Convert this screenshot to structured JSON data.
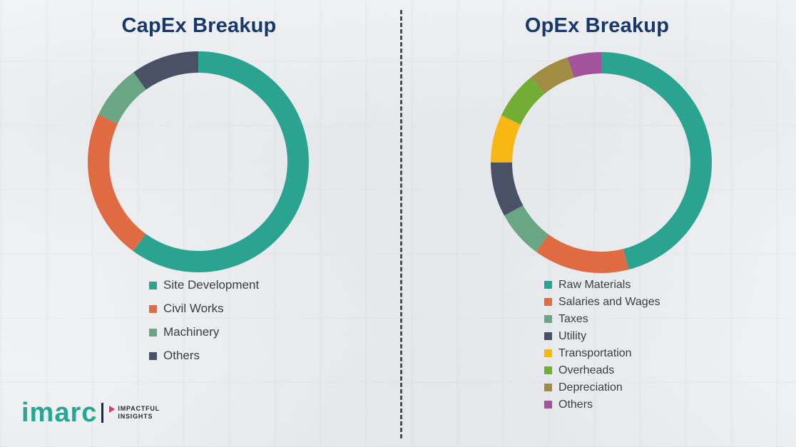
{
  "branding": {
    "name": "imarc",
    "tagline": [
      "IMPACTFUL",
      "INSIGHTS"
    ],
    "brand_color": "#27a695",
    "accent_color": "#e8326d",
    "title_color": "#16386b"
  },
  "chart_data": [
    {
      "type": "pie",
      "variant": "donut",
      "title": "CapEx Breakup",
      "legend_position": "bottom",
      "data_labels_shown": false,
      "segments": [
        {
          "label": "Site Development",
          "value": 60,
          "color": "#2aa491"
        },
        {
          "label": "Civil Works",
          "value": 22,
          "color": "#e06a42"
        },
        {
          "label": "Machinery",
          "value": 8,
          "color": "#6aa584"
        },
        {
          "label": "Others",
          "value": 10,
          "color": "#4a5066"
        }
      ]
    },
    {
      "type": "pie",
      "variant": "donut",
      "title": "OpEx Breakup",
      "legend_position": "bottom",
      "data_labels_shown": false,
      "segments": [
        {
          "label": "Raw Materials",
          "value": 46,
          "color": "#2aa491"
        },
        {
          "label": "Salaries and Wages",
          "value": 14,
          "color": "#e06a42"
        },
        {
          "label": "Taxes",
          "value": 7,
          "color": "#6aa584"
        },
        {
          "label": "Utility",
          "value": 8,
          "color": "#4a5066"
        },
        {
          "label": "Transportation",
          "value": 7,
          "color": "#f7b715"
        },
        {
          "label": "Overheads",
          "value": 7,
          "color": "#72ad34"
        },
        {
          "label": "Depreciation",
          "value": 6,
          "color": "#a08c42"
        },
        {
          "label": "Others",
          "value": 5,
          "color": "#a2539c"
        }
      ]
    }
  ]
}
